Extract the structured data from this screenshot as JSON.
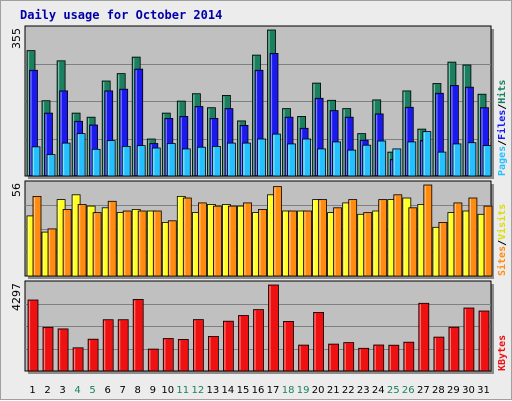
{
  "chart_data": {
    "type": "bar",
    "title": "Daily usage for October 2014",
    "categories": [
      "1",
      "2",
      "3",
      "4",
      "5",
      "6",
      "7",
      "8",
      "9",
      "10",
      "11",
      "12",
      "13",
      "14",
      "15",
      "16",
      "17",
      "18",
      "19",
      "20",
      "21",
      "22",
      "23",
      "24",
      "25",
      "26",
      "27",
      "28",
      "29",
      "30",
      "31"
    ],
    "weekend_days": [
      "4",
      "5",
      "11",
      "12",
      "18",
      "19",
      "25",
      "26"
    ],
    "panels": [
      {
        "id": "top",
        "max_label": "355",
        "ylim": [
          0,
          355
        ],
        "legend": [
          "Pages",
          "/",
          "Files",
          "/",
          "Hits"
        ],
        "series": [
          {
            "name": "Hits",
            "color": "#1a8060",
            "values": [
              305,
              183,
              280,
              153,
              143,
              231,
              249,
              289,
              90,
              153,
              182,
              200,
              166,
              196,
              134,
              294,
              355,
              164,
              145,
              226,
              184,
              164,
              103,
              185,
              58,
              207,
              114,
              225,
              277,
              270,
              199
            ]
          },
          {
            "name": "Files",
            "color": "#1a1aee",
            "values": [
              257,
              153,
              207,
              133,
              124,
              207,
              211,
              260,
              79,
              140,
              145,
              169,
              140,
              164,
              123,
              257,
              298,
              143,
              116,
              189,
              159,
              143,
              87,
              151,
              40,
              167,
              86,
              201,
              220,
              216,
              166
            ]
          },
          {
            "name": "Pages",
            "color": "#24c0ff",
            "values": [
              71,
              52,
              80,
              103,
              65,
              86,
              72,
              74,
              68,
              79,
              66,
              70,
              72,
              80,
              80,
              90,
              102,
              78,
              90,
              66,
              83,
              63,
              75,
              85,
              66,
              83,
              108,
              58,
              78,
              81,
              74
            ]
          }
        ]
      },
      {
        "id": "middle",
        "max_label": "56",
        "ylim": [
          0,
          56
        ],
        "legend": [
          "Sites",
          "/",
          "Visits"
        ],
        "series": [
          {
            "name": "Visits",
            "color": "#ffff22",
            "values": [
              37,
              27,
              47,
              50,
              43,
              42,
              39,
              41,
              40,
              33,
              49,
              39,
              44,
              44,
              43,
              39,
              50,
              40,
              40,
              47,
              39,
              45,
              38,
              40,
              47,
              48,
              44,
              30,
              39,
              40,
              38
            ]
          },
          {
            "name": "Sites",
            "color": "#ff8c10",
            "values": [
              49,
              29,
              41,
              44,
              39,
              46,
              40,
              40,
              40,
              34,
              48,
              45,
              43,
              43,
              45,
              41,
              55,
              40,
              40,
              47,
              42,
              47,
              39,
              47,
              50,
              42,
              56,
              33,
              45,
              48,
              43
            ]
          }
        ]
      },
      {
        "id": "bottom",
        "max_label": "4297",
        "ylim": [
          0,
          4297
        ],
        "legend": [
          "KBytes"
        ],
        "series": [
          {
            "name": "KBytes",
            "color": "#ee1111",
            "values": [
              3550,
              2181,
              2105,
              1160,
              1591,
              2562,
              2562,
              3578,
              1094,
              1622,
              1580,
              2570,
              1731,
              2489,
              2771,
              3068,
              4297,
              2477,
              1292,
              2926,
              1343,
              1421,
              1134,
              1299,
              1288,
              1441,
              3382,
              1693,
              2187,
              3150,
              3000
            ]
          }
        ]
      }
    ]
  }
}
